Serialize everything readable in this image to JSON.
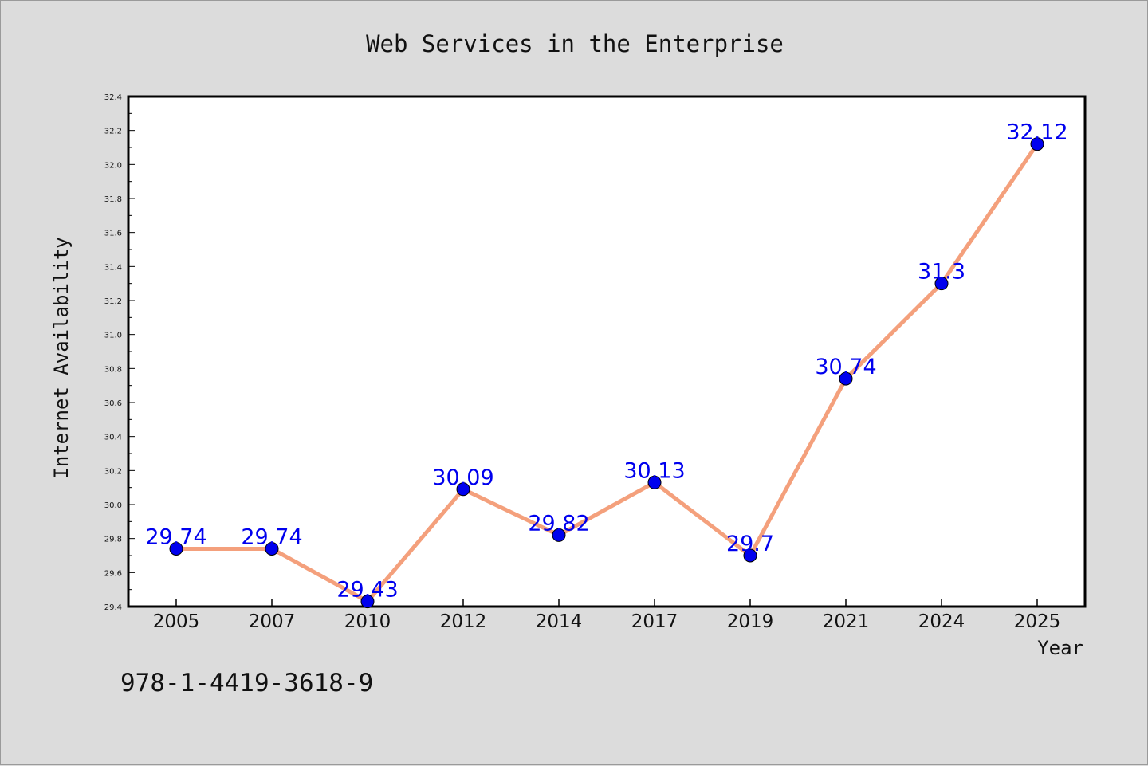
{
  "chart_data": {
    "type": "line",
    "title": "Web Services in the Enterprise",
    "xlabel": "Year",
    "ylabel": "Internet Availability",
    "categories": [
      "2005",
      "2007",
      "2010",
      "2012",
      "2014",
      "2017",
      "2019",
      "2021",
      "2024",
      "2025"
    ],
    "series": [
      {
        "values": [
          29.74,
          29.74,
          29.43,
          30.09,
          29.82,
          30.13,
          29.7,
          30.74,
          31.3,
          32.12
        ],
        "labels": [
          "29.74",
          "29.74",
          "29.43",
          "30.09",
          "29.82",
          "30.13",
          "29.7",
          "30.74",
          "31.3",
          "32.12"
        ]
      }
    ],
    "ylim": [
      29.4,
      32.4
    ],
    "yticks": [
      "29.4",
      "29.6",
      "29.8",
      "30.0",
      "30.2",
      "30.4",
      "30.6",
      "30.8",
      "31.0",
      "31.2",
      "31.4",
      "31.6",
      "31.8",
      "32.0",
      "32.2",
      "32.4"
    ],
    "grid": false,
    "colors": {
      "line": "#f4a07c",
      "marker": "#0000ee",
      "label": "#0000ee"
    }
  },
  "footer": {
    "isbn": "978-1-4419-3618-9"
  }
}
